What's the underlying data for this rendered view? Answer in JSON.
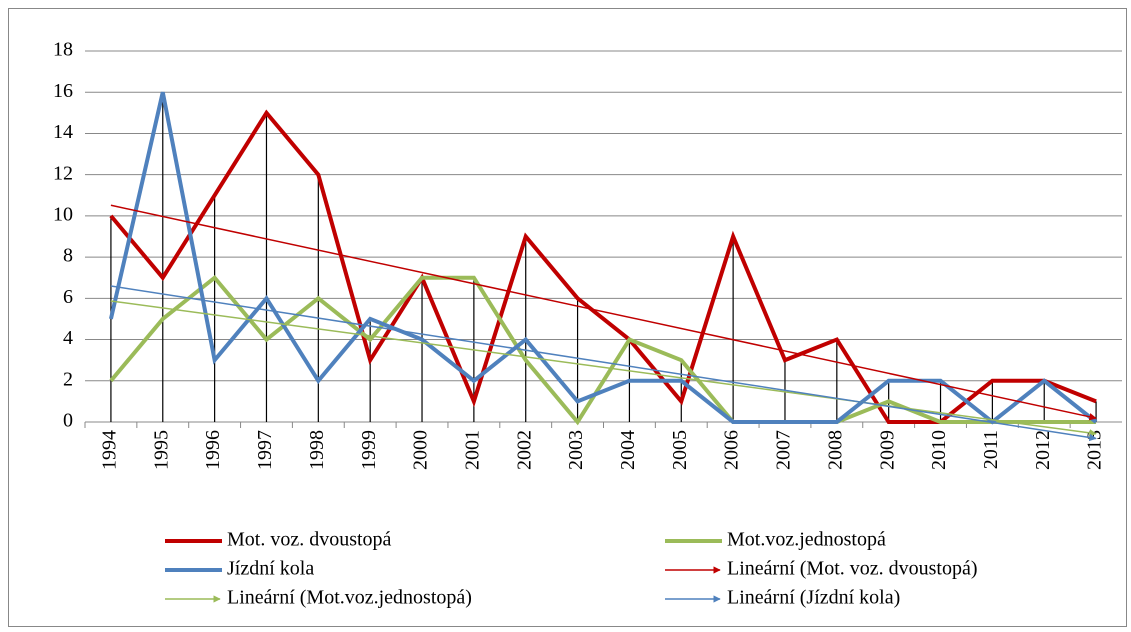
{
  "chart_data": {
    "type": "line",
    "categories": [
      "1994",
      "1995",
      "1996",
      "1997",
      "1998",
      "1999",
      "2000",
      "2001",
      "2002",
      "2003",
      "2004",
      "2005",
      "2006",
      "2007",
      "2008",
      "2009",
      "2010",
      "2011",
      "2012",
      "2013"
    ],
    "series": [
      {
        "name": "Mot. voz. dvoustopá",
        "color": "#c00000",
        "values": [
          10,
          7,
          11,
          15,
          12,
          3,
          7,
          1,
          9,
          6,
          4,
          1,
          9,
          3,
          4,
          0,
          0,
          2,
          2,
          1
        ]
      },
      {
        "name": "Mot.voz.jednostopá",
        "color": "#9bbb59",
        "values": [
          2,
          5,
          7,
          4,
          6,
          4,
          7,
          7,
          3,
          0,
          4,
          3,
          0,
          0,
          0,
          1,
          0,
          0,
          0,
          0
        ]
      },
      {
        "name": "Jízdní kola",
        "color": "#4f81bd",
        "values": [
          5,
          16,
          3,
          6,
          2,
          5,
          4,
          2,
          4,
          1,
          2,
          2,
          0,
          0,
          0,
          2,
          2,
          0,
          2,
          0
        ]
      }
    ],
    "trendlines": [
      {
        "name": "Lineární (Mot. voz. dvoustopá)",
        "color": "#c00000"
      },
      {
        "name": "Lineární (Mot.voz.jednostopá)",
        "color": "#9bbb59"
      },
      {
        "name": "Lineární (Jízdní kola)",
        "color": "#4f81bd"
      }
    ],
    "ylim": [
      0,
      18
    ],
    "yticks": [
      0,
      2,
      4,
      6,
      8,
      10,
      12,
      14,
      16,
      18
    ],
    "grid": true,
    "drop_lines": true
  }
}
